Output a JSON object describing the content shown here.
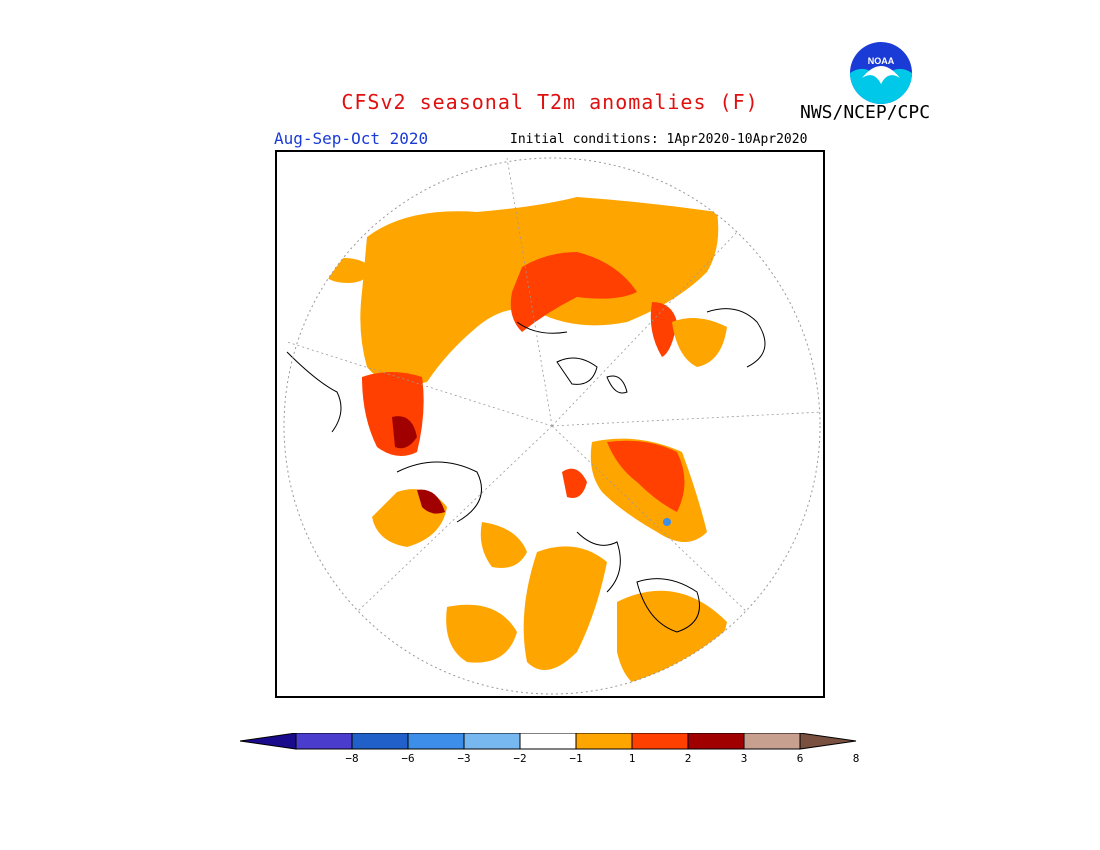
{
  "title": "CFSv2 seasonal T2m anomalies (F)",
  "agency": "NWS/NCEP/CPC",
  "logo_text": "NOAA",
  "season": "Aug-Sep-Oct 2020",
  "initial_conditions": "Initial conditions: 1Apr2020-10Apr2020",
  "colorbar": {
    "colors": [
      "#1a0a8c",
      "#4a3ccc",
      "#2060c8",
      "#3c8ee8",
      "#78b8f0",
      "#ffffff",
      "#ffa500",
      "#ff4000",
      "#a00000",
      "#c8a090",
      "#7a5040"
    ],
    "ticks": [
      "−8",
      "−6",
      "−3",
      "−2",
      "−1",
      "1",
      "2",
      "3",
      "6",
      "8"
    ]
  },
  "map": {
    "projection": "north-polar-stereographic",
    "colors": {
      "anom_1_2": "#ffa500",
      "anom_2_3": "#ff4000",
      "anom_3_6": "#a00000",
      "neg": "#3c8ee8"
    }
  }
}
